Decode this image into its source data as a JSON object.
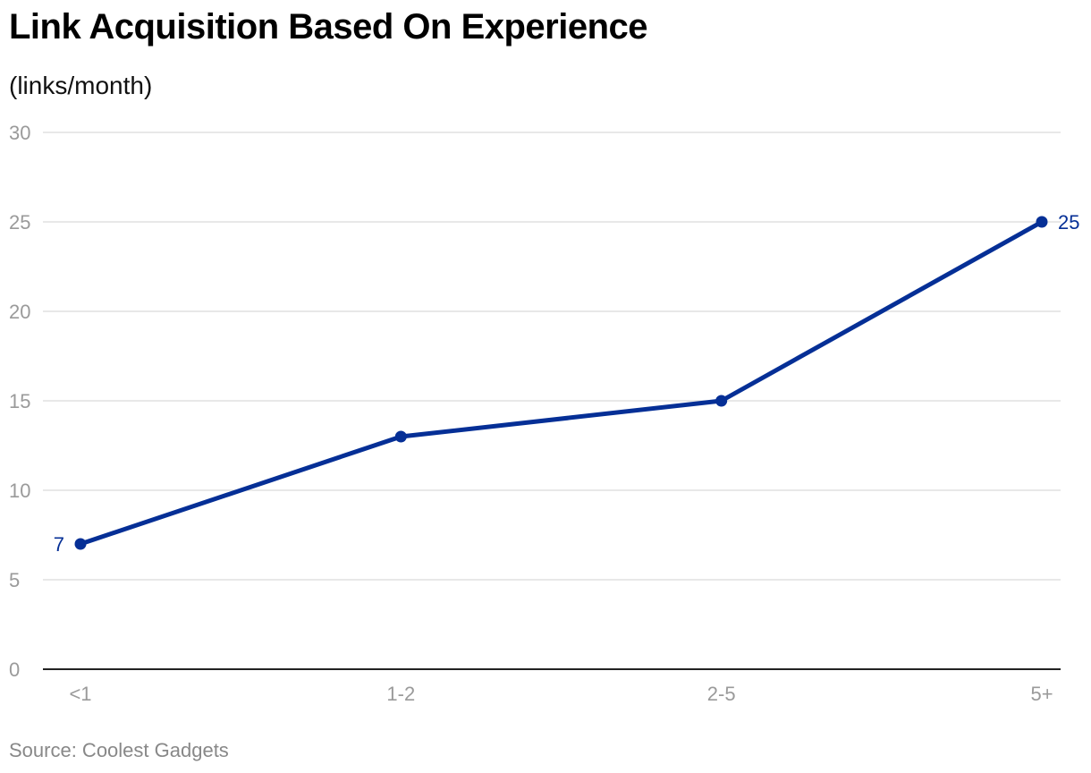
{
  "header": {
    "title": "Link Acquisition Based On Experience",
    "subtitle": "(links/month)"
  },
  "footer": {
    "source": "Source: Coolest Gadgets"
  },
  "colors": {
    "series": "#052f96",
    "grid": "#e1e1e1",
    "axis": "#222222",
    "tick_text": "#9a9a9a"
  },
  "chart_data": {
    "type": "line",
    "title": "Link Acquisition Based On Experience",
    "subtitle": "(links/month)",
    "xlabel": "",
    "ylabel": "",
    "categories": [
      "<1",
      "1-2",
      "2-5",
      "5+"
    ],
    "series": [
      {
        "values": [
          7,
          13,
          15,
          25
        ],
        "labels": [
          "7",
          "",
          "",
          "25"
        ]
      }
    ],
    "y_ticks": [
      0,
      5,
      10,
      15,
      20,
      25,
      30
    ],
    "ylim": [
      0,
      30
    ],
    "grid": true,
    "legend": "none"
  }
}
